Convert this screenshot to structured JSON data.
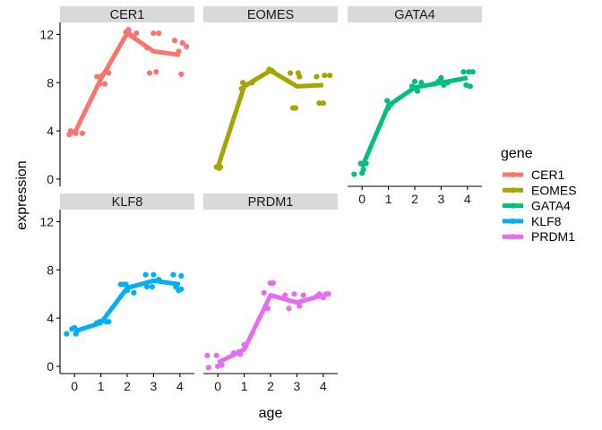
{
  "chart_data": {
    "type": "scatter",
    "facet_by": "gene",
    "xlabel": "age",
    "ylabel": "expression",
    "x_ticks": [
      0,
      1,
      2,
      3,
      4
    ],
    "y_ticks": [
      0,
      4,
      8,
      12
    ],
    "xlim": [
      -0.55,
      4.55
    ],
    "ylim": [
      -0.6,
      13.0
    ],
    "legend": {
      "title": "gene",
      "position": "right",
      "items": [
        {
          "label": "CER1",
          "color": "#F8766D"
        },
        {
          "label": "EOMES",
          "color": "#A3A500"
        },
        {
          "label": "GATA4",
          "color": "#00BF7D"
        },
        {
          "label": "KLF8",
          "color": "#00B0F6"
        },
        {
          "label": "PRDM1",
          "color": "#E76BF3"
        }
      ]
    },
    "panels": [
      {
        "gene": "CER1",
        "color": "#F8766D",
        "mean_line": {
          "x": [
            0,
            1,
            2,
            3,
            4
          ],
          "y": [
            3.8,
            8.3,
            12.1,
            10.6,
            10.3
          ]
        },
        "points": [
          [
            -0.2,
            3.7
          ],
          [
            -0.15,
            4.0
          ],
          [
            0.05,
            3.8
          ],
          [
            0.3,
            3.8
          ],
          [
            -0.05,
            3.9
          ],
          [
            0.85,
            8.5
          ],
          [
            0.95,
            7.9
          ],
          [
            1.05,
            8.6
          ],
          [
            1.15,
            7.9
          ],
          [
            1.3,
            8.8
          ],
          [
            1.95,
            12.2
          ],
          [
            2.05,
            12.4
          ],
          [
            2.1,
            12.0
          ],
          [
            2.25,
            11.8
          ],
          [
            2.35,
            12.1
          ],
          [
            2.75,
            10.9
          ],
          [
            2.85,
            8.8
          ],
          [
            3.0,
            12.1
          ],
          [
            3.1,
            8.9
          ],
          [
            3.2,
            12.1
          ],
          [
            3.8,
            11.5
          ],
          [
            3.95,
            10.6
          ],
          [
            4.05,
            8.7
          ],
          [
            4.1,
            11.3
          ],
          [
            4.25,
            11.0
          ]
        ]
      },
      {
        "gene": "EOMES",
        "color": "#A3A500",
        "mean_line": {
          "x": [
            0,
            1,
            2,
            3,
            4
          ],
          "y": [
            1.0,
            7.7,
            9.0,
            7.7,
            7.8
          ]
        },
        "points": [
          [
            -0.05,
            1.0
          ],
          [
            0.05,
            0.9
          ],
          [
            0.1,
            1.0
          ],
          [
            0.9,
            7.5
          ],
          [
            0.95,
            8.0
          ],
          [
            1.05,
            7.8
          ],
          [
            1.3,
            8.0
          ],
          [
            1.95,
            9.1
          ],
          [
            2.05,
            9.0
          ],
          [
            2.1,
            8.9
          ],
          [
            2.75,
            8.8
          ],
          [
            2.85,
            5.9
          ],
          [
            2.95,
            5.9
          ],
          [
            3.05,
            8.8
          ],
          [
            3.1,
            8.5
          ],
          [
            3.75,
            8.5
          ],
          [
            3.85,
            6.3
          ],
          [
            4.0,
            6.3
          ],
          [
            4.05,
            8.6
          ],
          [
            4.25,
            8.6
          ]
        ]
      },
      {
        "gene": "GATA4",
        "color": "#00BF7D",
        "mean_line": {
          "x": [
            0,
            1,
            2,
            3,
            4
          ],
          "y": [
            1.0,
            6.1,
            7.6,
            8.0,
            8.4
          ]
        },
        "points": [
          [
            -0.3,
            0.4
          ],
          [
            -0.05,
            1.3
          ],
          [
            0.0,
            0.5
          ],
          [
            0.05,
            0.8
          ],
          [
            0.15,
            1.3
          ],
          [
            0.95,
            6.5
          ],
          [
            1.0,
            5.9
          ],
          [
            1.05,
            6.2
          ],
          [
            1.1,
            6.2
          ],
          [
            1.9,
            7.7
          ],
          [
            1.95,
            7.6
          ],
          [
            2.0,
            8.1
          ],
          [
            2.1,
            7.3
          ],
          [
            2.25,
            8.0
          ],
          [
            2.75,
            7.9
          ],
          [
            2.9,
            8.1
          ],
          [
            3.0,
            8.4
          ],
          [
            3.1,
            7.8
          ],
          [
            3.25,
            8.0
          ],
          [
            3.85,
            8.9
          ],
          [
            3.95,
            7.8
          ],
          [
            4.05,
            8.9
          ],
          [
            4.1,
            7.7
          ],
          [
            4.2,
            8.9
          ]
        ]
      },
      {
        "gene": "KLF8",
        "color": "#00B0F6",
        "mean_line": {
          "x": [
            0,
            1,
            2,
            3,
            4
          ],
          "y": [
            2.9,
            3.6,
            6.5,
            7.1,
            6.8
          ]
        },
        "points": [
          [
            -0.3,
            2.7
          ],
          [
            -0.1,
            3.1
          ],
          [
            0.0,
            3.2
          ],
          [
            0.05,
            2.7
          ],
          [
            0.1,
            3.0
          ],
          [
            0.85,
            3.6
          ],
          [
            0.95,
            3.7
          ],
          [
            1.2,
            3.7
          ],
          [
            1.3,
            3.7
          ],
          [
            1.75,
            6.8
          ],
          [
            1.85,
            6.8
          ],
          [
            1.95,
            6.8
          ],
          [
            2.0,
            6.3
          ],
          [
            2.25,
            6.1
          ],
          [
            2.7,
            7.6
          ],
          [
            2.75,
            6.6
          ],
          [
            2.95,
            6.6
          ],
          [
            3.0,
            7.6
          ],
          [
            3.2,
            7.2
          ],
          [
            3.75,
            7.6
          ],
          [
            3.85,
            6.6
          ],
          [
            3.95,
            6.3
          ],
          [
            4.05,
            7.5
          ],
          [
            4.05,
            6.4
          ]
        ]
      },
      {
        "gene": "PRDM1",
        "color": "#E76BF3",
        "mean_line": {
          "x": [
            0,
            1,
            2,
            3,
            4
          ],
          "y": [
            0.3,
            1.4,
            5.9,
            5.3,
            5.9
          ]
        },
        "points": [
          [
            -0.4,
            0.9
          ],
          [
            -0.35,
            -0.1
          ],
          [
            -0.05,
            0.9
          ],
          [
            0.0,
            0.0
          ],
          [
            0.15,
            0.1
          ],
          [
            0.6,
            1.1
          ],
          [
            0.8,
            1.2
          ],
          [
            0.85,
            1.0
          ],
          [
            1.0,
            1.8
          ],
          [
            1.05,
            1.7
          ],
          [
            1.75,
            6.1
          ],
          [
            1.8,
            4.8
          ],
          [
            1.9,
            4.8
          ],
          [
            2.0,
            6.9
          ],
          [
            2.1,
            6.9
          ],
          [
            2.55,
            5.9
          ],
          [
            2.7,
            4.8
          ],
          [
            2.9,
            6.0
          ],
          [
            3.1,
            5.0
          ],
          [
            3.25,
            5.9
          ],
          [
            3.75,
            5.8
          ],
          [
            3.85,
            6.0
          ],
          [
            4.0,
            5.7
          ],
          [
            4.1,
            6.0
          ],
          [
            4.2,
            6.0
          ]
        ]
      }
    ]
  }
}
